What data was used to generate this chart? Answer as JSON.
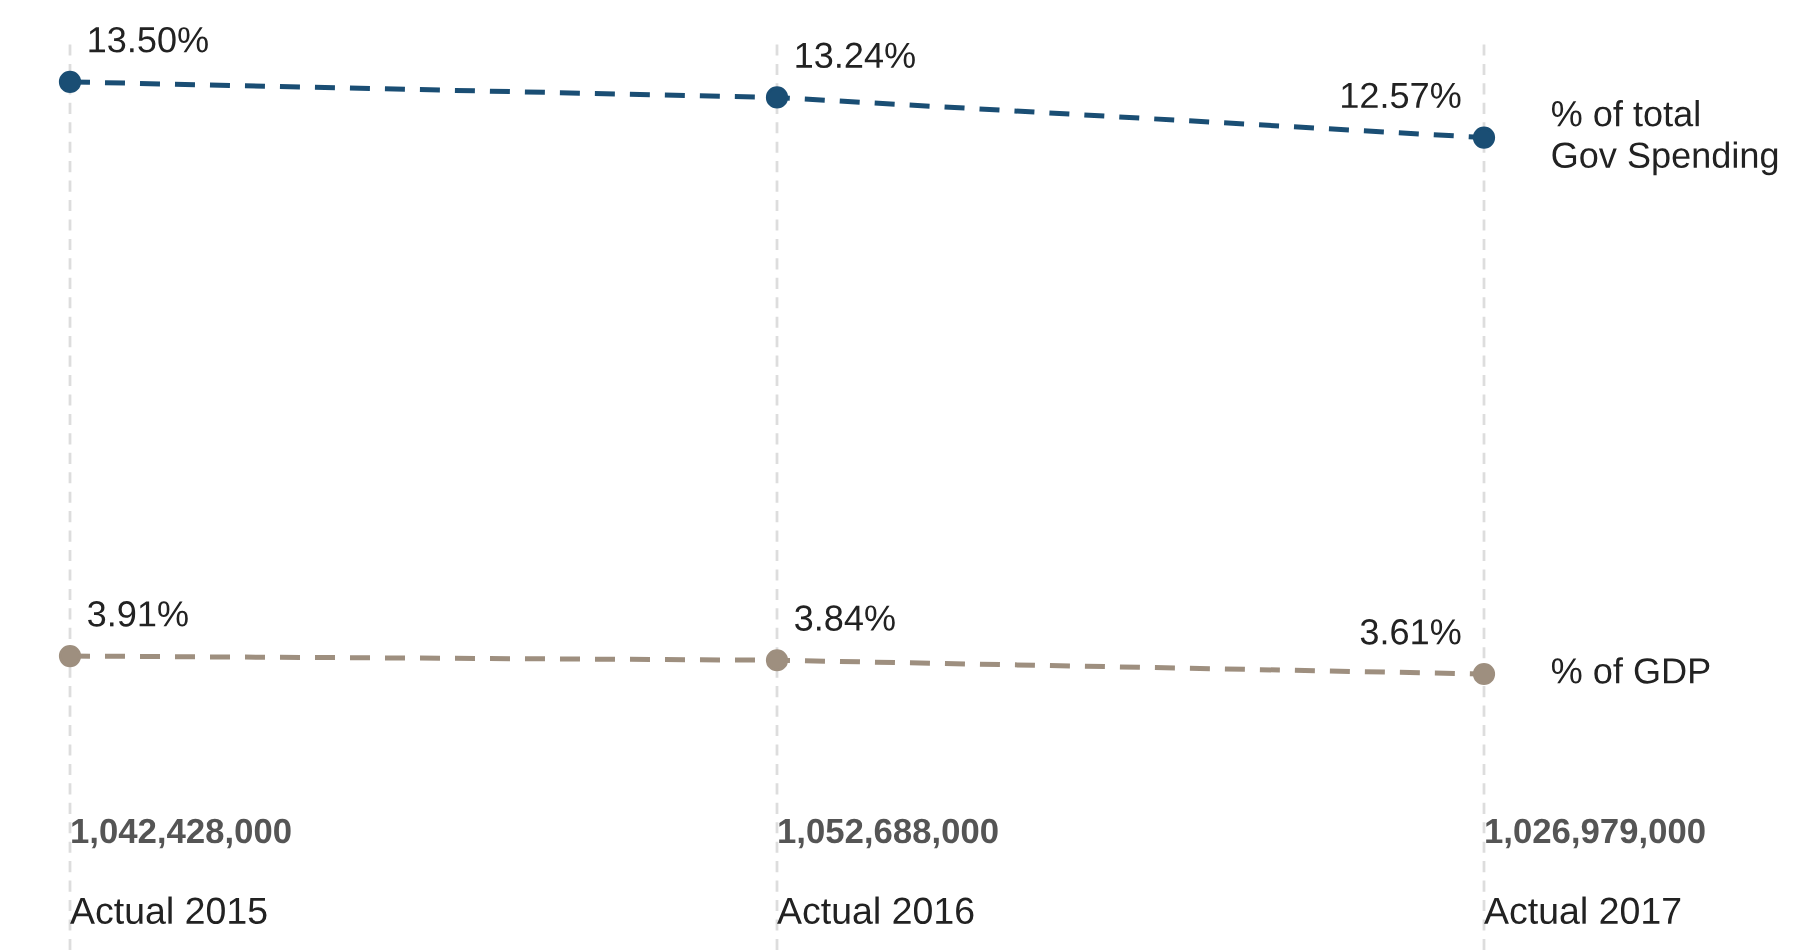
{
  "chart_data": {
    "type": "line",
    "categories": [
      "Actual 2015",
      "Actual 2016",
      "Actual 2017"
    ],
    "series": [
      {
        "name": "% of total\nGov Spending",
        "color": "#1a4e74",
        "values": [
          13.5,
          13.24,
          12.57
        ],
        "value_labels": [
          "13.50%",
          "13.24%",
          "12.57%"
        ]
      },
      {
        "name": "% of GDP",
        "color": "#9e8f7f",
        "values": [
          3.91,
          3.84,
          3.61
        ],
        "value_labels": [
          "3.91%",
          "3.84%",
          "3.61%"
        ]
      }
    ],
    "ylim": [
      -1,
      14.2
    ],
    "grid": "x",
    "marker": "circle",
    "line_style": "dashed",
    "legend": "right",
    "tick_labels": "x",
    "annotations": [
      "1,042,428,000",
      "1,052,688,000",
      "1,026,979,000"
    ]
  }
}
